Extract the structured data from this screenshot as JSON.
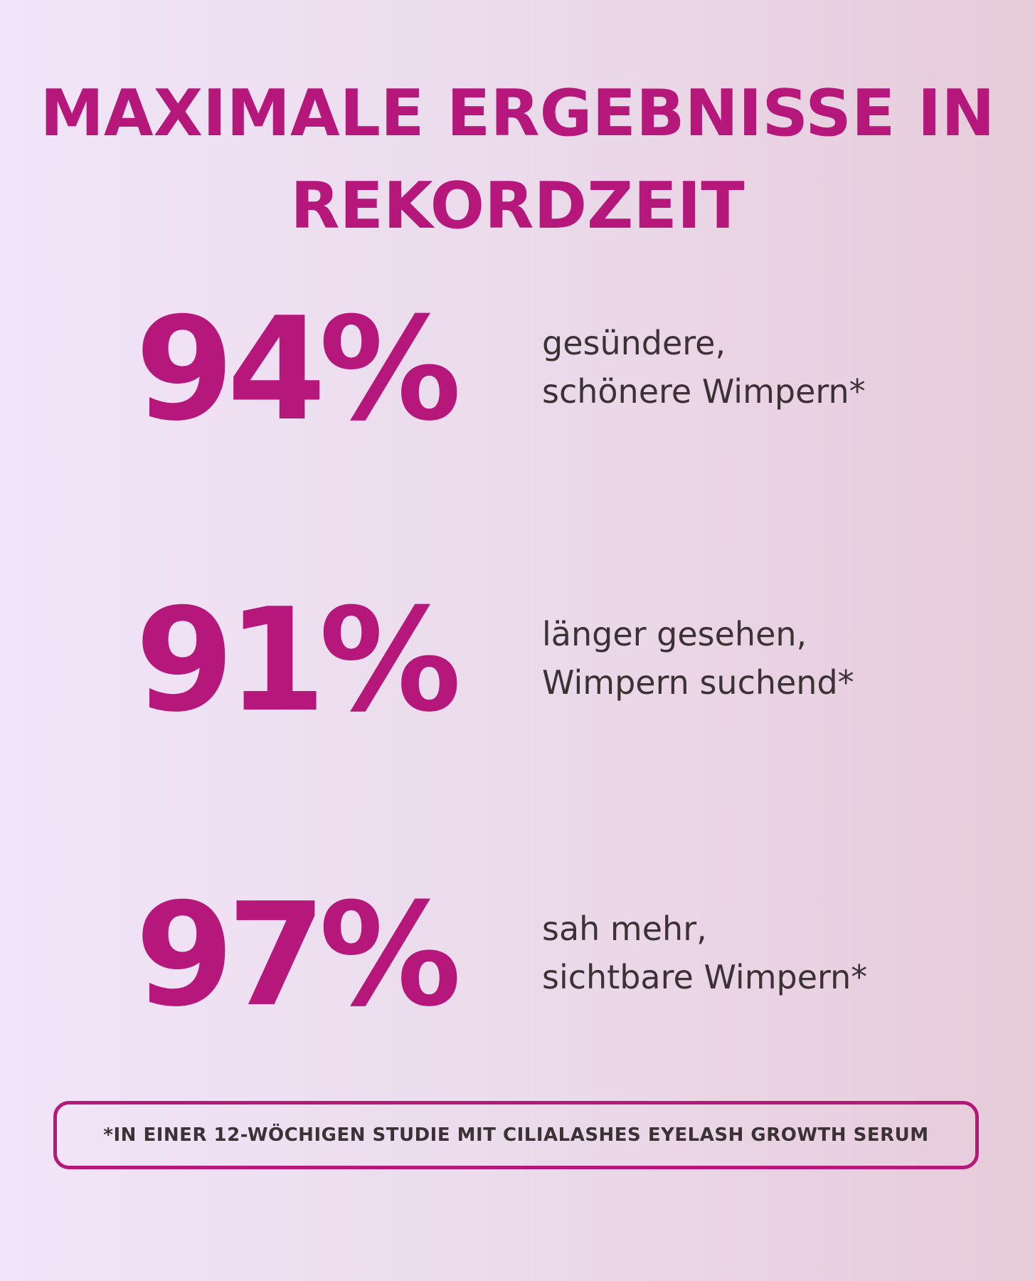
{
  "headline": {
    "line1": "MAXIMALE ERGEBNISSE IN",
    "line2": "REKORDZEIT"
  },
  "stats": [
    {
      "value": "94%",
      "line1": "gesündere,",
      "line2": "schönere Wimpern*"
    },
    {
      "value": "91%",
      "line1": "länger gesehen,",
      "line2": "Wimpern suchend*"
    },
    {
      "value": "97%",
      "line1": "sah mehr,",
      "line2": "sichtbare Wimpern*"
    }
  ],
  "footnote": "*IN EINER 12-WÖCHIGEN STUDIE MIT CILIALASHES EYELASH GROWTH SERUM",
  "colors": {
    "accent": "#b5177b",
    "text": "#3c3236",
    "background_left": "#f2e5f9",
    "background_right": "#e7cbd9"
  }
}
